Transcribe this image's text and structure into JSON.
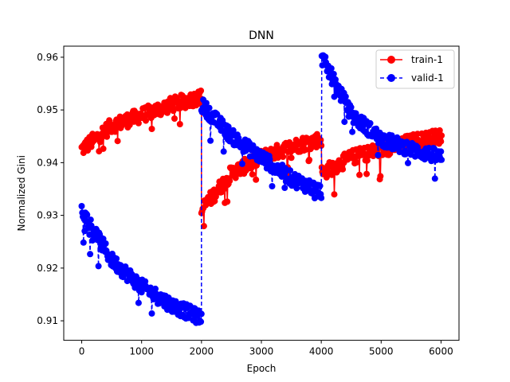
{
  "chart_data": {
    "type": "scatter",
    "title": "DNN",
    "xlabel": "Epoch",
    "ylabel": "Normalized Gini",
    "xlim": [
      -300,
      6300
    ],
    "ylim": [
      0.9063,
      0.9621
    ],
    "xticks": [
      0,
      1000,
      2000,
      3000,
      4000,
      5000,
      6000
    ],
    "yticks": [
      0.91,
      0.92,
      0.93,
      0.94,
      0.95,
      0.96
    ],
    "xtick_labels": [
      "0",
      "1000",
      "2000",
      "3000",
      "4000",
      "5000",
      "6000"
    ],
    "ytick_labels": [
      "0.91",
      "0.92",
      "0.93",
      "0.94",
      "0.95",
      "0.96"
    ],
    "grid": false,
    "legend_position": "top-right",
    "series": [
      {
        "name": "train-1",
        "color": "#ff0000",
        "line_style": "solid",
        "marker": "circle",
        "segments": [
          {
            "x": [
              0,
              500,
              1000,
              1500,
              2000
            ],
            "y": [
              0.9425,
              0.947,
              0.949,
              0.951,
              0.9525
            ]
          },
          {
            "x": [
              2000,
              2500,
              3000,
              3500,
              4000
            ],
            "y": [
              0.931,
              0.938,
              0.941,
              0.943,
              0.9445
            ]
          },
          {
            "x": [
              4000,
              4500,
              5000,
              5500,
              6000
            ],
            "y": [
              0.938,
              0.941,
              0.9425,
              0.944,
              0.945
            ]
          }
        ]
      },
      {
        "name": "valid-1",
        "color": "#0000ff",
        "line_style": "dashed",
        "marker": "circle",
        "segments": [
          {
            "x": [
              0,
              500,
              1000,
              1500,
              2000
            ],
            "y": [
              0.931,
              0.9215,
              0.9165,
              0.913,
              0.9105
            ]
          },
          {
            "x": [
              2000,
              2500,
              3000,
              3500,
              4000
            ],
            "y": [
              0.951,
              0.945,
              0.941,
              0.937,
              0.9345
            ]
          },
          {
            "x": [
              4000,
              4500,
              5000,
              5500,
              6000
            ],
            "y": [
              0.96,
              0.949,
              0.9445,
              0.9425,
              0.941
            ]
          }
        ]
      }
    ]
  }
}
